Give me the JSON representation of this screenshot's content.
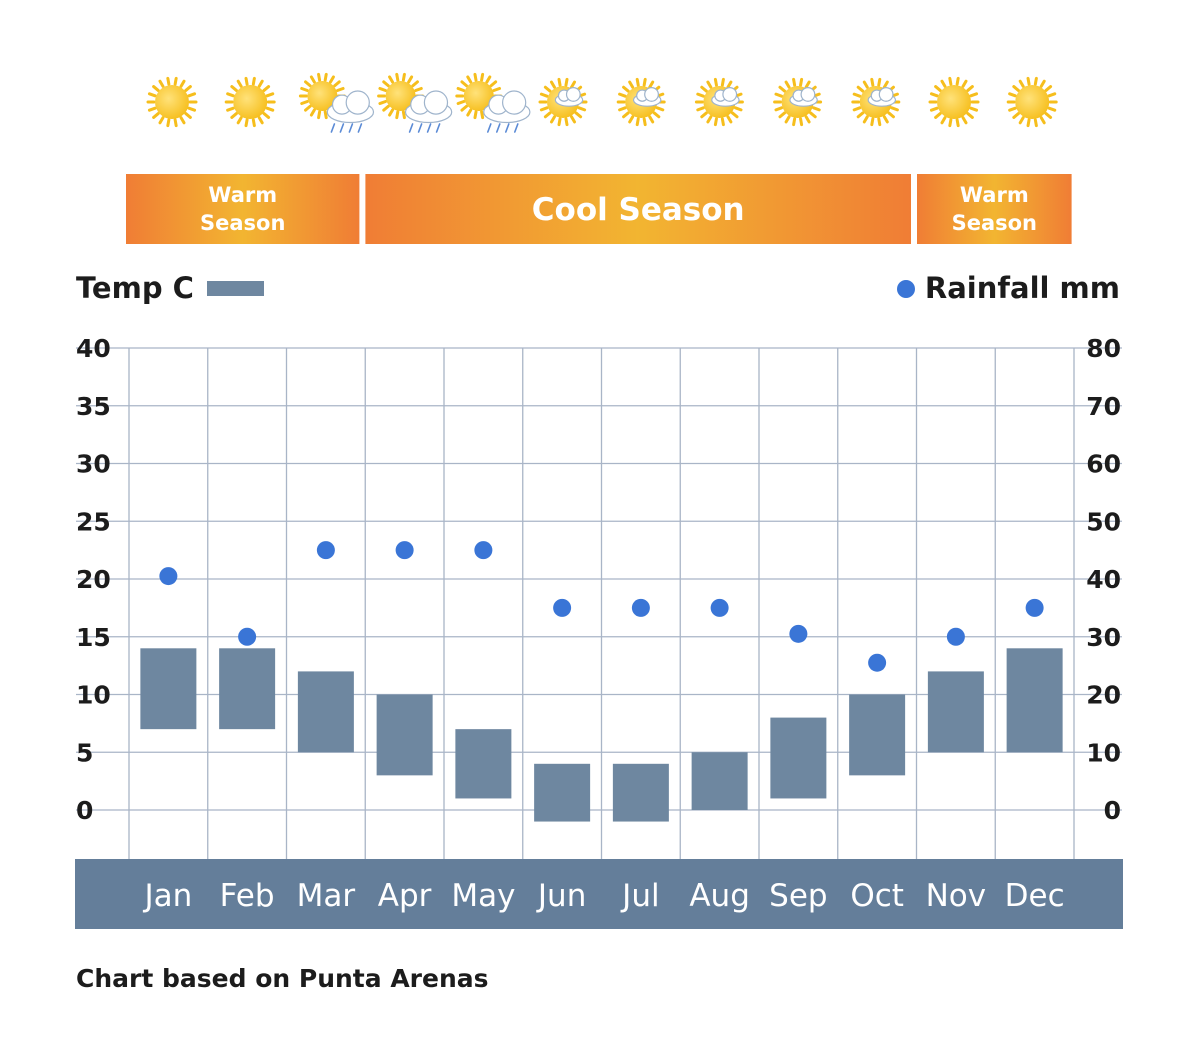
{
  "weather_icons": [
    "sun-icon",
    "sun-icon",
    "sun-rain-cloud-icon",
    "sun-rain-cloud-icon",
    "sun-rain-cloud-icon",
    "sun-cloud-icon",
    "sun-cloud-icon",
    "sun-cloud-icon",
    "sun-cloud-icon",
    "sun-cloud-icon",
    "sun-icon",
    "sun-icon"
  ],
  "seasons": [
    {
      "label_lines": [
        "Warm",
        "Season"
      ],
      "start": 0,
      "end": 3
    },
    {
      "label_lines": [
        "Cool Season"
      ],
      "start": 3,
      "end": 10
    },
    {
      "label_lines": [
        "Warm",
        "Season"
      ],
      "start": 10,
      "end": 12
    }
  ],
  "colors": {
    "bar": "#6e87a0",
    "dot": "#3a75d6",
    "month_band": "#647e9a",
    "grid": "#a9b5c7",
    "season_edge": "#f07d35",
    "season_mid": "#f2b531",
    "sun": "#f6be1c"
  },
  "chart_data": {
    "type": "bar",
    "categories": [
      "Jan",
      "Feb",
      "Mar",
      "Apr",
      "May",
      "Jun",
      "Jul",
      "Aug",
      "Sep",
      "Oct",
      "Nov",
      "Dec"
    ],
    "series": [
      {
        "name": "Temp C",
        "kind": "floating-bar",
        "axis": "left",
        "low": [
          7,
          7,
          5,
          3,
          1,
          -1,
          -1,
          0,
          1,
          3,
          5,
          5
        ],
        "high": [
          14,
          14,
          12,
          10,
          7,
          4,
          4,
          5,
          8,
          10,
          12,
          14
        ]
      },
      {
        "name": "Rainfall mm",
        "kind": "dot",
        "axis": "right",
        "values": [
          40.5,
          30,
          45,
          45,
          45,
          35,
          35,
          35,
          30.5,
          25.5,
          30,
          35
        ]
      }
    ],
    "y_left": {
      "label": "Temp C",
      "ylim": [
        0,
        40
      ],
      "ticks": [
        "40",
        "35",
        "30",
        "25",
        "20",
        "15",
        "10",
        "5",
        "0"
      ]
    },
    "y_right": {
      "label": "Rainfall mm",
      "ylim": [
        0,
        80
      ],
      "ticks": [
        "80",
        "70",
        "60",
        "50",
        "40",
        "30",
        "20",
        "10",
        "0"
      ]
    },
    "grid": true,
    "legend": "top",
    "footnote": "Chart based on Punta Arenas"
  }
}
